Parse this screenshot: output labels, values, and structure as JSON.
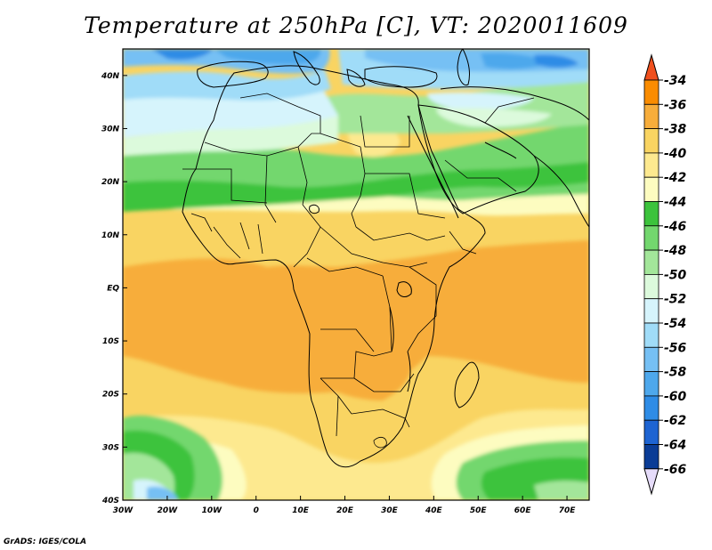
{
  "title": "Temperature at 250hPa [C], VT: 2020011609",
  "credit": "GrADS: IGES/COLA",
  "map": {
    "lon_range": [
      -30,
      75
    ],
    "lat_range": [
      -40,
      45
    ],
    "x_ticks": [
      {
        "lon": -30,
        "label": "30W"
      },
      {
        "lon": -20,
        "label": "20W"
      },
      {
        "lon": -10,
        "label": "10W"
      },
      {
        "lon": 0,
        "label": "0"
      },
      {
        "lon": 10,
        "label": "10E"
      },
      {
        "lon": 20,
        "label": "20E"
      },
      {
        "lon": 30,
        "label": "30E"
      },
      {
        "lon": 40,
        "label": "40E"
      },
      {
        "lon": 50,
        "label": "50E"
      },
      {
        "lon": 60,
        "label": "60E"
      },
      {
        "lon": 70,
        "label": "70E"
      }
    ],
    "y_ticks": [
      {
        "lat": 40,
        "label": "40N"
      },
      {
        "lat": 30,
        "label": "30N"
      },
      {
        "lat": 20,
        "label": "20N"
      },
      {
        "lat": 10,
        "label": "10N"
      },
      {
        "lat": 0,
        "label": "EQ"
      },
      {
        "lat": -10,
        "label": "10S"
      },
      {
        "lat": -20,
        "label": "20S"
      },
      {
        "lat": -30,
        "label": "30S"
      },
      {
        "lat": -40,
        "label": "40S"
      }
    ]
  },
  "colorbar": {
    "labels": [
      "-34",
      "-36",
      "-38",
      "-40",
      "-42",
      "-44",
      "-46",
      "-48",
      "-50",
      "-52",
      "-54",
      "-56",
      "-58",
      "-60",
      "-62",
      "-64",
      "-66"
    ],
    "colors": [
      "#f0501e",
      "#fa8c00",
      "#f7ad3b",
      "#f9d462",
      "#fde98f",
      "#fdfcc0",
      "#3cc33c",
      "#73d76e",
      "#a3e69a",
      "#dcfadc",
      "#d6f4fc",
      "#a0dcf8",
      "#76c0f4",
      "#4ea8ec",
      "#2e8ce6",
      "#1e64d2",
      "#0a3c96",
      "#06196e",
      "#e6dcfa"
    ],
    "top_arrow": "#f0501e",
    "bottom_arrow": "#e6dcfa"
  },
  "fields": {
    "colors": {
      "base": "#f9d462",
      "orange": "#f7ad3b",
      "yellow": "#fde98f",
      "cream": "#fdfcc0",
      "green_dark": "#3cc33c",
      "green": "#73d76e",
      "green_light": "#a3e69a",
      "mint": "#dcfadc",
      "cyan_light": "#d6f4fc",
      "blue_light": "#a0dcf8",
      "blue": "#76c0f4",
      "blue_mid": "#4ea8ec",
      "blue_dark": "#2e8ce6"
    }
  }
}
